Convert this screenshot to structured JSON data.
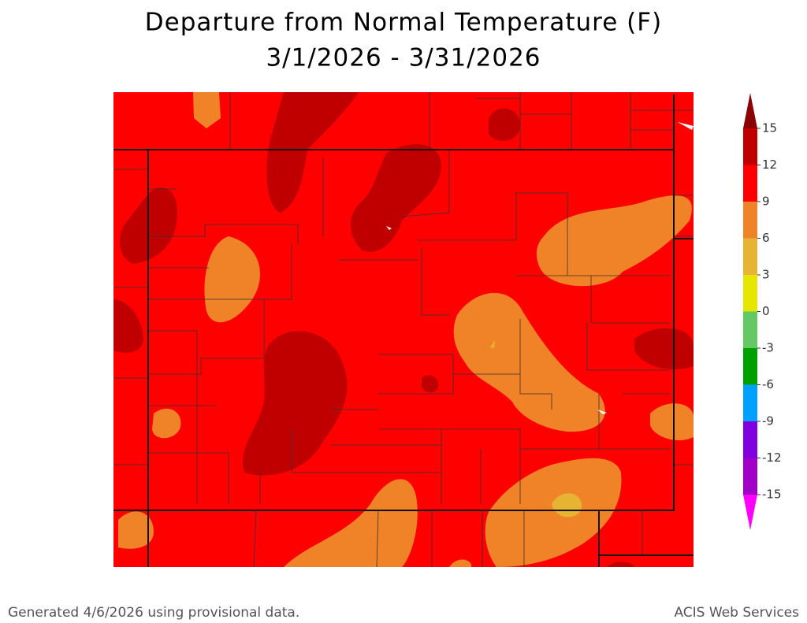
{
  "map": {
    "title": "Departure from Normal Temperature (F)",
    "subtitle": "3/1/2026 - 3/31/2026",
    "legend": {
      "ticks": [
        15,
        12,
        9,
        6,
        3,
        0,
        -3,
        -6,
        -9,
        -12,
        -15
      ],
      "colors": [
        "#8b0000",
        "#c00000",
        "#ff0000",
        "#f08228",
        "#e6b432",
        "#e6e600",
        "#64c864",
        "#00a000",
        "#00a0ff",
        "#8000e0",
        "#a000c8",
        "#ff00ff"
      ]
    }
  },
  "footer": {
    "left": "Generated 4/6/2026 using provisional data.",
    "right": "ACIS Web Services"
  }
}
